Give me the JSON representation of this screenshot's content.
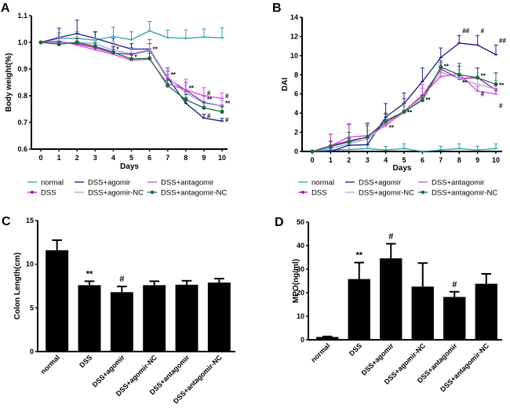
{
  "figure": {
    "panels": [
      "A",
      "B",
      "C",
      "D"
    ]
  },
  "chart_data": [
    {
      "panel": "A",
      "type": "line",
      "title": "",
      "xlabel": "Days",
      "ylabel": "Body weight(%)",
      "x": [
        0,
        1,
        2,
        3,
        4,
        5,
        6,
        7,
        8,
        9,
        10
      ],
      "xticks": [
        "0",
        "1",
        "2",
        "3",
        "4",
        "5",
        "6",
        "7",
        "8",
        "9",
        "10"
      ],
      "yticks": [
        "0.6",
        "0.7",
        "0.8",
        "0.9",
        "1.0",
        "1.1"
      ],
      "ytick_values": [
        0.6,
        0.7,
        0.8,
        0.9,
        1.0,
        1.1
      ],
      "ylim": [
        0.6,
        1.1
      ],
      "xlim": [
        -0.5,
        10.5
      ],
      "grid": false,
      "legend_position": "bottom",
      "series": [
        {
          "name": "normal",
          "color": "#2a9fb5",
          "marker": "tick",
          "values": [
            1.0,
            1.015,
            1.015,
            1.008,
            1.022,
            1.01,
            1.043,
            1.018,
            1.015,
            1.02,
            1.017
          ],
          "errors": [
            0,
            0.02,
            0.025,
            0.03,
            0.035,
            0.03,
            0.035,
            0.028,
            0.032,
            0.03,
            0.038
          ]
        },
        {
          "name": "DSS",
          "color": "#a020a0",
          "marker": "square",
          "values": [
            1.0,
            1.0,
            0.995,
            0.98,
            0.96,
            0.955,
            0.97,
            0.865,
            0.82,
            0.775,
            0.762
          ],
          "errors": [
            0,
            0.02,
            0.02,
            0.02,
            0.025,
            0.025,
            0.04,
            0.04,
            0.03,
            0.025,
            0.02
          ]
        },
        {
          "name": "DSS+agomir",
          "color": "#1a1a8c",
          "marker": "tick",
          "values": [
            1.0,
            1.018,
            1.033,
            1.015,
            0.995,
            0.975,
            0.975,
            0.868,
            0.772,
            0.716,
            0.705
          ],
          "errors": [
            0,
            0.035,
            0.05,
            0.025,
            0.02,
            0.02,
            0.02,
            0.025,
            0.02,
            0.015,
            0.01
          ]
        },
        {
          "name": "DSS+agomir-NC",
          "color": "#9aa8e8",
          "marker": "tick",
          "values": [
            1.0,
            0.998,
            1.0,
            0.995,
            0.97,
            0.958,
            0.972,
            0.87,
            0.81,
            0.772,
            0.762
          ],
          "errors": [
            0,
            0.02,
            0.02,
            0.02,
            0.035,
            0.02,
            0.04,
            0.03,
            0.03,
            0.025,
            0.02
          ]
        },
        {
          "name": "DSS+antagomir",
          "color": "#e040e0",
          "marker": "tick",
          "values": [
            1.0,
            1.005,
            0.99,
            0.972,
            0.955,
            0.933,
            0.937,
            0.845,
            0.822,
            0.8,
            0.79
          ],
          "errors": [
            0,
            0.015,
            0.015,
            0.015,
            0.02,
            0.025,
            0.03,
            0.035,
            0.04,
            0.03,
            0.02
          ]
        },
        {
          "name": "DSS+antagomir-NC",
          "color": "#1e6b3a",
          "marker": "circle",
          "values": [
            1.0,
            0.993,
            1.0,
            0.985,
            0.963,
            0.938,
            0.94,
            0.838,
            0.785,
            0.755,
            0.74
          ],
          "errors": [
            0,
            0.01,
            0.015,
            0.015,
            0.02,
            0.02,
            0.02,
            0.02,
            0.02,
            0.02,
            0.02
          ]
        }
      ],
      "annotations": [
        {
          "x": 4,
          "y": 0.975,
          "text": "*"
        },
        {
          "x": 5,
          "y": 0.945,
          "text": "*"
        },
        {
          "x": 6,
          "y": 0.975,
          "text": "**"
        },
        {
          "x": 7,
          "y": 0.88,
          "text": "**"
        },
        {
          "x": 8,
          "y": 0.83,
          "text": "**"
        },
        {
          "x": 9,
          "y": 0.81,
          "text": "#"
        },
        {
          "x": 9,
          "y": 0.787,
          "text": "**"
        },
        {
          "x": 9,
          "y": 0.725,
          "text": "#"
        },
        {
          "x": 10,
          "y": 0.8,
          "text": "#"
        },
        {
          "x": 10,
          "y": 0.772,
          "text": "**"
        },
        {
          "x": 10,
          "y": 0.71,
          "text": "#"
        }
      ]
    },
    {
      "panel": "B",
      "type": "line",
      "title": "",
      "xlabel": "Days",
      "ylabel": "DAI",
      "x": [
        0,
        1,
        2,
        3,
        4,
        5,
        6,
        7,
        8,
        9,
        10
      ],
      "xticks": [
        "0",
        "1",
        "2",
        "3",
        "4",
        "5",
        "6",
        "7",
        "8",
        "9",
        "10"
      ],
      "yticks": [
        "0",
        "2",
        "4",
        "6",
        "8",
        "10",
        "12",
        "14"
      ],
      "ytick_values": [
        0,
        2,
        4,
        6,
        8,
        10,
        12,
        14
      ],
      "ylim": [
        0,
        14
      ],
      "xlim": [
        -0.5,
        10.5
      ],
      "grid": false,
      "legend_position": "bottom",
      "series": [
        {
          "name": "normal",
          "color": "#2a9fb5",
          "marker": "tick",
          "values": [
            0,
            0.15,
            0.2,
            0.3,
            0.15,
            0.3,
            0,
            0.15,
            0.3,
            0.15,
            0.3
          ],
          "errors": [
            0,
            0.3,
            0.4,
            0.4,
            0.4,
            0.5,
            0,
            0.4,
            0.5,
            0.4,
            0.5
          ]
        },
        {
          "name": "DSS",
          "color": "#a020a0",
          "marker": "square",
          "values": [
            0,
            0.6,
            1.1,
            1.5,
            3.0,
            4.2,
            5.8,
            8.6,
            7.6,
            7.7,
            6.4
          ],
          "errors": [
            0,
            1.2,
            1.7,
            1.4,
            1.0,
            1.3,
            1.2,
            0.7,
            1.6,
            1.0,
            1.8
          ]
        },
        {
          "name": "DSS+agomir",
          "color": "#1a1a8c",
          "marker": "tick",
          "values": [
            0,
            0,
            0.65,
            0.7,
            3.6,
            5.0,
            7.3,
            9.8,
            11.3,
            11.1,
            10.1
          ],
          "errors": [
            0,
            0.4,
            0.7,
            0.7,
            1.4,
            1.1,
            1.4,
            1.0,
            0.8,
            1.0,
            1.0
          ]
        },
        {
          "name": "DSS+agomir-NC",
          "color": "#9aa8e8",
          "marker": "tick",
          "values": [
            0,
            0.3,
            0.8,
            1.3,
            2.8,
            4.0,
            5.6,
            8.3,
            7.6,
            7.0,
            6.5
          ],
          "errors": [
            0,
            0.4,
            0.6,
            0.9,
            0.6,
            0.7,
            1.0,
            0.8,
            0.9,
            0.8,
            0.9
          ]
        },
        {
          "name": "DSS+antagomir",
          "color": "#e040e0",
          "marker": "tick",
          "values": [
            0,
            0.6,
            1.5,
            1.65,
            2.7,
            4.2,
            5.9,
            7.8,
            8.1,
            6.3,
            6.0
          ],
          "errors": [
            0,
            0.5,
            1.4,
            1.35,
            0.6,
            0.8,
            1.1,
            0.7,
            1.1,
            0.5,
            0.6
          ]
        },
        {
          "name": "DSS+antagomir-NC",
          "color": "#1e6b3a",
          "marker": "circle",
          "values": [
            0,
            0.5,
            1.0,
            1.5,
            3.2,
            4.15,
            5.35,
            8.8,
            8.0,
            7.7,
            7.0
          ],
          "errors": [
            0,
            0.5,
            1.0,
            1.2,
            0.7,
            0.9,
            0.5,
            0.7,
            0.9,
            1.0,
            1.2
          ]
        }
      ],
      "annotations": [
        {
          "x": 4,
          "y": 2.5,
          "text": "**"
        },
        {
          "x": 5,
          "y": 4.1,
          "text": "**"
        },
        {
          "x": 6,
          "y": 5.4,
          "text": "**"
        },
        {
          "x": 7,
          "y": 8.9,
          "text": "**"
        },
        {
          "x": 8,
          "y": 7.2,
          "text": "**"
        },
        {
          "x": 8,
          "y": 12.6,
          "text": "##"
        },
        {
          "x": 9,
          "y": 7.9,
          "text": "**"
        },
        {
          "x": 9,
          "y": 12.6,
          "text": "#"
        },
        {
          "x": 9,
          "y": 6.0,
          "text": "#"
        },
        {
          "x": 10,
          "y": 6.9,
          "text": "**"
        },
        {
          "x": 10,
          "y": 11.6,
          "text": "##"
        },
        {
          "x": 10,
          "y": 4.8,
          "text": "#"
        }
      ]
    },
    {
      "panel": "C",
      "type": "bar",
      "title": "",
      "xlabel": "",
      "ylabel": "Colon Length(cm)",
      "categories": [
        "normal",
        "DSS",
        "DSS+agomir",
        "DSS+agomir-NC",
        "DSS+antagomir",
        "DSS+antagomir-NC"
      ],
      "values": [
        11.6,
        7.6,
        6.8,
        7.6,
        7.65,
        7.9
      ],
      "errors": [
        1.15,
        0.45,
        0.65,
        0.45,
        0.45,
        0.45
      ],
      "yticks": [
        "0",
        "5",
        "10",
        "15"
      ],
      "ytick_values": [
        0,
        5,
        10,
        15
      ],
      "ylim": [
        0,
        15
      ],
      "bar_color": "#000000",
      "grid": false,
      "annotations": [
        {
          "category": "DSS",
          "text": "**"
        },
        {
          "category": "DSS+agomir",
          "text": "#"
        }
      ]
    },
    {
      "panel": "D",
      "type": "bar",
      "title": "",
      "xlabel": "",
      "ylabel": "MPO(ng/ml)",
      "categories": [
        "normal",
        "DSS",
        "DSS+agomir",
        "DSS+agomir-NC",
        "DSS+antagomir",
        "DSS+antagomir-NC"
      ],
      "values": [
        1.2,
        25.8,
        34.6,
        22.6,
        18.2,
        23.8
      ],
      "errors": [
        0.2,
        7.0,
        6.2,
        10.0,
        2.2,
        4.2
      ],
      "yticks": [
        "0",
        "10",
        "20",
        "30",
        "40",
        "50"
      ],
      "ytick_values": [
        0,
        10,
        20,
        30,
        40,
        50
      ],
      "ylim": [
        0,
        50
      ],
      "bar_color": "#000000",
      "grid": false,
      "annotations": [
        {
          "category": "DSS",
          "text": "**"
        },
        {
          "category": "DSS+agomir",
          "text": "#"
        },
        {
          "category": "DSS+antagomir",
          "text": "#"
        }
      ]
    }
  ]
}
